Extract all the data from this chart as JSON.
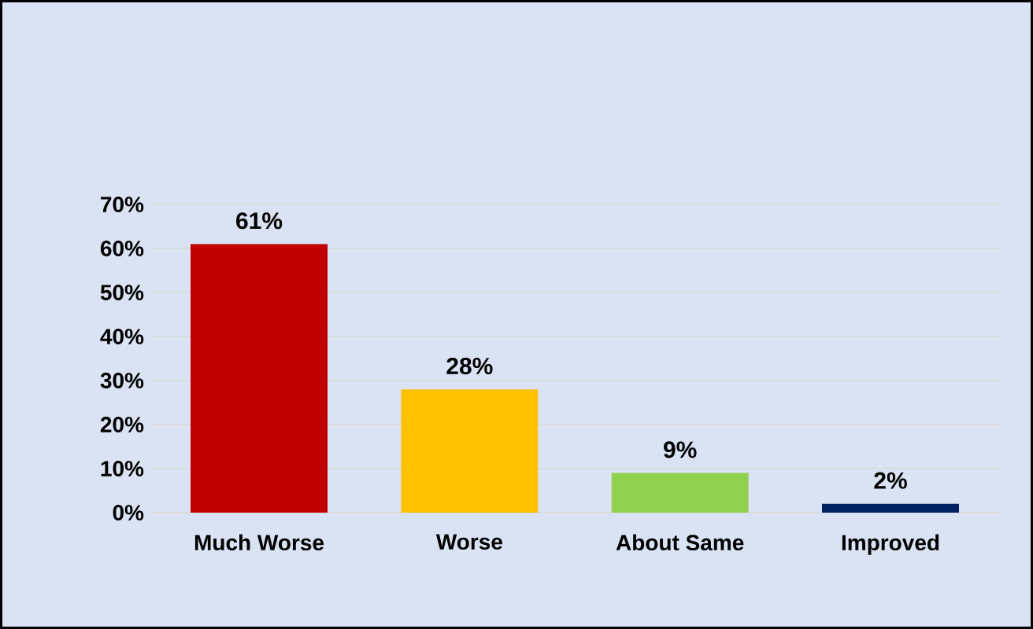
{
  "chart_data": {
    "type": "bar",
    "categories": [
      "Much Worse",
      "Worse",
      "About Same",
      "Improved"
    ],
    "values": [
      61,
      28,
      9,
      2
    ],
    "colors": [
      "#c00000",
      "#ffc000",
      "#92d050",
      "#002060"
    ],
    "value_labels": [
      "61%",
      "28%",
      "9%",
      "2%"
    ],
    "ylim": [
      0,
      70
    ],
    "yticks": [
      {
        "value": 0,
        "label": "0%"
      },
      {
        "value": 10,
        "label": "10%"
      },
      {
        "value": 20,
        "label": "20%"
      },
      {
        "value": 30,
        "label": "30%"
      },
      {
        "value": 40,
        "label": "40%"
      },
      {
        "value": 50,
        "label": "50%"
      },
      {
        "value": 60,
        "label": "60%"
      },
      {
        "value": 70,
        "label": "70%"
      }
    ],
    "grid": "y"
  }
}
